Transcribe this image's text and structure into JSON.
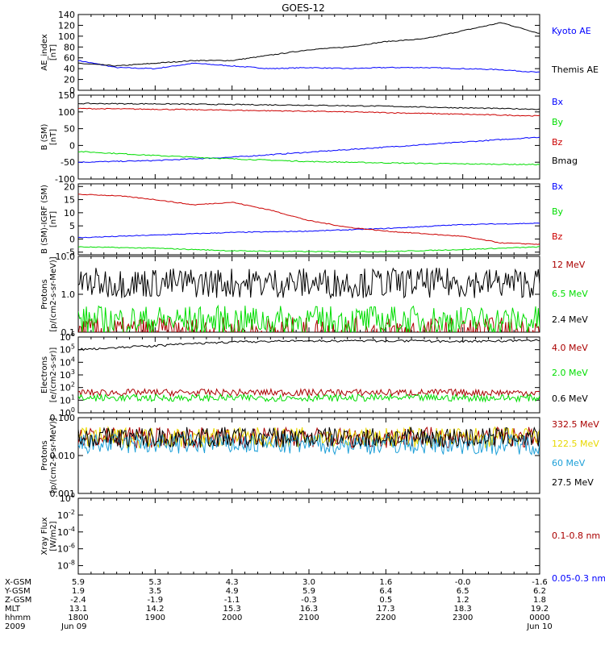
{
  "title": "GOES-12",
  "colors": {
    "black": "#000000",
    "blue": "#0000ff",
    "red": "#cc0000",
    "green": "#00dd00",
    "darkred": "#aa0000",
    "yellow": "#e8d800",
    "cyan": "#1ea0d8"
  },
  "chart_data": [
    {
      "type": "line",
      "id": "ae",
      "ylabel": "AE_index [nT]",
      "yticks": [
        "0",
        "20",
        "40",
        "60",
        "80",
        "100",
        "120",
        "140"
      ],
      "ylim": [
        0,
        140
      ],
      "series": [
        {
          "name": "Kyoto AE",
          "color": "blue",
          "x_hours": [
            18,
            18.5,
            19,
            19.5,
            20,
            20.5,
            21,
            21.5,
            22,
            22.5,
            23,
            23.5,
            24
          ],
          "values": [
            55,
            42,
            40,
            50,
            45,
            40,
            42,
            40,
            42,
            42,
            40,
            38,
            33
          ]
        },
        {
          "name": "Themis AE",
          "color": "black",
          "x_hours": [
            18,
            18.5,
            19,
            19.5,
            20,
            20.5,
            21,
            21.5,
            22,
            22.5,
            23,
            23.5,
            24
          ],
          "values": [
            50,
            45,
            50,
            55,
            55,
            65,
            75,
            80,
            90,
            95,
            110,
            125,
            105
          ]
        }
      ]
    },
    {
      "type": "line",
      "id": "bsm",
      "ylabel": "B (SM) [nT]",
      "yticks": [
        "-100",
        "-50",
        "0",
        "50",
        "100",
        "150"
      ],
      "ylim": [
        -100,
        150
      ],
      "series": [
        {
          "name": "Bx",
          "color": "blue",
          "x_hours": [
            18,
            19,
            20,
            21,
            22,
            23,
            24
          ],
          "values": [
            -50,
            -45,
            -35,
            -20,
            -5,
            10,
            25
          ]
        },
        {
          "name": "By",
          "color": "green",
          "x_hours": [
            18,
            19,
            20,
            21,
            22,
            23,
            24
          ],
          "values": [
            -18,
            -30,
            -40,
            -48,
            -52,
            -55,
            -57
          ]
        },
        {
          "name": "Bz",
          "color": "red",
          "x_hours": [
            18,
            19,
            20,
            21,
            22,
            23,
            24
          ],
          "values": [
            110,
            108,
            105,
            102,
            98,
            93,
            88
          ]
        },
        {
          "name": "Bmag",
          "color": "black",
          "x_hours": [
            18,
            19,
            20,
            21,
            22,
            23,
            24
          ],
          "values": [
            125,
            124,
            122,
            120,
            117,
            112,
            108
          ]
        }
      ]
    },
    {
      "type": "line",
      "id": "bgrf",
      "ylabel": "B (SM)-IGRF (SM) [nT]",
      "yticks": [
        "-5",
        "0",
        "5",
        "10",
        "15",
        "20"
      ],
      "ylim": [
        -6,
        21
      ],
      "series": [
        {
          "name": "Bx",
          "color": "blue",
          "x_hours": [
            18,
            19,
            20,
            21,
            22,
            23,
            24
          ],
          "values": [
            0.5,
            1.5,
            2.5,
            3,
            4,
            5.5,
            6
          ]
        },
        {
          "name": "By",
          "color": "green",
          "x_hours": [
            18,
            19,
            20,
            21,
            22,
            23,
            24
          ],
          "values": [
            -3,
            -3.5,
            -4.5,
            -4.8,
            -4.8,
            -4,
            -3
          ]
        },
        {
          "name": "Bz",
          "color": "red",
          "x_hours": [
            18,
            18.5,
            19,
            19.5,
            20,
            20.5,
            21,
            21.5,
            22,
            22.5,
            23,
            23.5,
            24
          ],
          "values": [
            17,
            16.5,
            15,
            13,
            14,
            11,
            7,
            4.5,
            3,
            2,
            1,
            -1.5,
            -2
          ]
        }
      ]
    },
    {
      "type": "line",
      "id": "protons_low",
      "ylabel": "Protons [p/(cm2-s-sr-MeV)]",
      "yticks": [
        "0.1",
        "1.0",
        "10.0"
      ],
      "ylim": [
        0.1,
        10
      ],
      "scale": "log",
      "series": [
        {
          "name": "12 MeV",
          "color": "darkred",
          "level": 0.1
        },
        {
          "name": "6.5 MeV",
          "color": "green",
          "level": 0.2
        },
        {
          "name": "2.4 MeV",
          "color": "black",
          "level": 2.0
        }
      ]
    },
    {
      "type": "line",
      "id": "electrons",
      "ylabel": "Electrons [e/(cm2-s-sr)]",
      "yticks": [
        "10^0",
        "10^1",
        "10^2",
        "10^3",
        "10^4",
        "10^5",
        "10^6"
      ],
      "ylim": [
        1,
        1000000
      ],
      "scale": "log",
      "series": [
        {
          "name": "4.0 MeV",
          "color": "darkred",
          "level": 40
        },
        {
          "name": "2.0 MeV",
          "color": "green",
          "level": 15
        },
        {
          "name": "0.6 MeV",
          "color": "black",
          "x_hours": [
            18,
            19,
            20,
            21,
            22,
            23,
            24
          ],
          "values": [
            100000,
            200000,
            400000,
            500000,
            500000,
            450000,
            550000
          ]
        }
      ]
    },
    {
      "type": "line",
      "id": "protons_high",
      "ylabel": "Protons [p/(cm2-s-sr-MeV)]",
      "yticks": [
        "0.001",
        "0.010",
        "0.100"
      ],
      "ylim": [
        0.001,
        0.1
      ],
      "scale": "log",
      "series": [
        {
          "name": "332.5 MeV",
          "color": "darkred",
          "level": 0.03
        },
        {
          "name": "122.5 MeV",
          "color": "yellow",
          "level": 0.03
        },
        {
          "name": "60 MeV",
          "color": "cyan",
          "level": 0.02
        },
        {
          "name": "27.5 MeV",
          "color": "black",
          "level": 0.03
        }
      ]
    },
    {
      "type": "line",
      "id": "xray",
      "ylabel": "Xray Flux [W/m2]",
      "yticks": [
        "10^-8",
        "10^-6",
        "10^-4",
        "10^-2",
        "10^0"
      ],
      "ylim": [
        1e-09,
        1
      ],
      "scale": "log",
      "series": [
        {
          "name": "0.1-0.8 nm",
          "color": "darkred"
        },
        {
          "name": "0.05-0.3 nm",
          "color": "blue"
        }
      ]
    }
  ],
  "footer": {
    "row_labels": [
      "X-GSM",
      "Y-GSM",
      "Z-GSM",
      "MLT",
      "hhmm",
      "2009"
    ],
    "columns": [
      [
        "5.9",
        "1.9",
        "-2.4",
        "13.1",
        "1800",
        "Jun 09"
      ],
      [
        "5.3",
        "3.5",
        "-1.9",
        "14.2",
        "1900",
        ""
      ],
      [
        "4.3",
        "4.9",
        "-1.1",
        "15.3",
        "2000",
        ""
      ],
      [
        "3.0",
        "5.9",
        "-0.3",
        "16.3",
        "2100",
        ""
      ],
      [
        "1.6",
        "6.4",
        "0.5",
        "17.3",
        "2200",
        ""
      ],
      [
        "-0.0",
        "6.5",
        "1.2",
        "18.3",
        "2300",
        ""
      ],
      [
        "-1.6",
        "6.2",
        "1.8",
        "19.2",
        "0000",
        "Jun 10"
      ]
    ]
  }
}
